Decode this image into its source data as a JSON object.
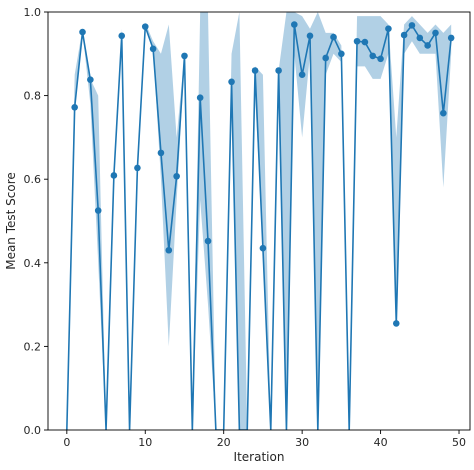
{
  "chart_data": {
    "type": "line",
    "title": "",
    "xlabel": "Iteration",
    "ylabel": "Mean Test Score",
    "xlim": [
      -2.4,
      51.4
    ],
    "ylim": [
      0.0,
      1.0
    ],
    "xticks": [
      0,
      10,
      20,
      30,
      40,
      50
    ],
    "yticks": [
      0.0,
      0.2,
      0.4,
      0.6,
      0.8,
      1.0
    ],
    "xtick_labels": [
      "0",
      "10",
      "20",
      "30",
      "40",
      "50"
    ],
    "ytick_labels": [
      "0.0",
      "0.2",
      "0.4",
      "0.6",
      "0.8",
      "1.0"
    ],
    "grid": false,
    "color": "#1f77b4",
    "band_color": "#1f77b4",
    "band_opacity": 0.35,
    "series": [
      {
        "x": [
          0,
          1,
          2,
          3,
          4,
          5,
          6,
          7,
          8,
          9,
          10,
          11,
          12,
          13,
          14,
          15,
          16,
          17,
          18,
          19,
          20,
          21,
          22,
          23,
          24,
          25,
          26,
          27,
          28,
          29,
          30,
          31,
          32,
          33,
          34,
          35,
          36,
          37,
          38,
          39,
          40,
          41,
          42,
          43,
          44,
          45,
          46,
          47,
          48,
          49
        ],
        "y": [
          0.0,
          0.772,
          0.952,
          0.838,
          0.525,
          0.0,
          0.609,
          0.943,
          0.0,
          0.627,
          0.965,
          0.912,
          0.663,
          0.43,
          0.607,
          0.895,
          0.0,
          0.795,
          0.452,
          0.0,
          0.0,
          0.833,
          0.0,
          0.0,
          0.86,
          0.435,
          0.0,
          0.86,
          0.0,
          0.97,
          0.85,
          0.943,
          0.0,
          0.89,
          0.94,
          0.9,
          0.0,
          0.93,
          0.928,
          0.895,
          0.888,
          0.96,
          0.255,
          0.945,
          0.968,
          0.938,
          0.92,
          0.95,
          0.758,
          0.938
        ],
        "lower": [
          0.0,
          0.772,
          0.952,
          0.78,
          0.4,
          0.0,
          0.609,
          0.943,
          0.0,
          0.627,
          0.965,
          0.912,
          0.6,
          0.2,
          0.55,
          0.88,
          0.0,
          0.55,
          0.3,
          0.0,
          0.0,
          0.833,
          0.0,
          0.0,
          0.8,
          0.435,
          0.0,
          0.86,
          0.0,
          0.9,
          0.7,
          0.9,
          0.0,
          0.85,
          0.9,
          0.88,
          0.0,
          0.87,
          0.87,
          0.84,
          0.84,
          0.9,
          0.255,
          0.9,
          0.93,
          0.9,
          0.9,
          0.9,
          0.58,
          0.9
        ],
        "upper": [
          0.0,
          0.85,
          0.96,
          0.84,
          0.8,
          0.0,
          0.609,
          0.96,
          0.0,
          0.627,
          0.975,
          0.93,
          0.9,
          0.97,
          0.7,
          0.9,
          0.0,
          1.0,
          1.0,
          0.0,
          0.0,
          0.9,
          1.0,
          0.0,
          0.87,
          0.85,
          0.0,
          0.86,
          1.0,
          1.0,
          0.99,
          0.96,
          1.0,
          0.95,
          0.95,
          0.92,
          0.0,
          0.99,
          0.99,
          0.99,
          0.99,
          0.97,
          0.7,
          0.97,
          0.99,
          0.97,
          0.95,
          0.97,
          0.95,
          0.97
        ],
        "marked": [
          1,
          2,
          3,
          4,
          6,
          7,
          9,
          10,
          11,
          12,
          13,
          14,
          15,
          17,
          18,
          21,
          24,
          25,
          27,
          29,
          30,
          31,
          33,
          34,
          35,
          37,
          38,
          39,
          40,
          41,
          42,
          43,
          44,
          45,
          46,
          47,
          48,
          49
        ]
      }
    ]
  }
}
